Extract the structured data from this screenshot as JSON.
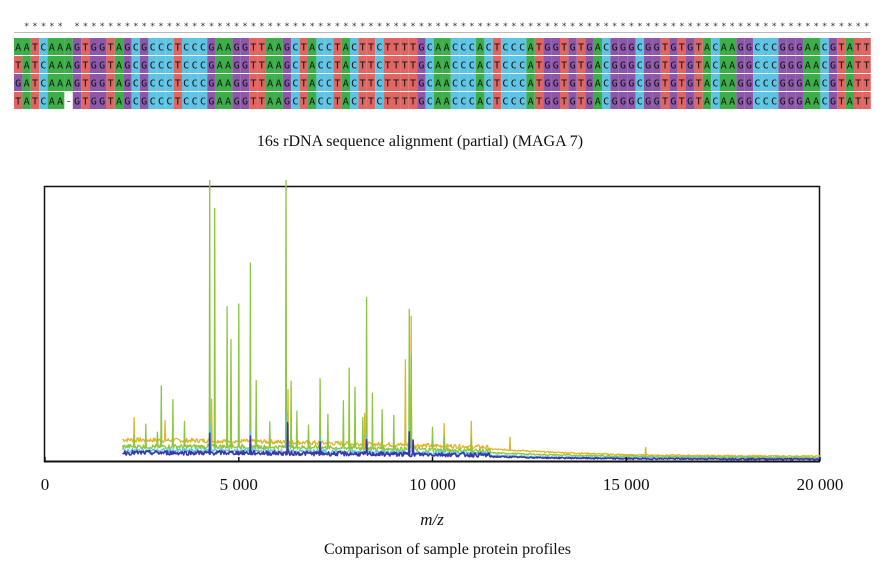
{
  "alignment": {
    "caption": "16s rDNA sequence alignment (partial) (MAGA 7)",
    "conservation_mark": "*",
    "sequences": [
      "AATCAAAGTGGTAGCGCCCTCCCGAAGGTTAAGCTACCTACTTCTTTTGCAACCCACTCCCATGGTGTGACGGGCGGTGTGTACAAGGCCCGGGAACGTATT",
      "TATCAAAGTGGTAGCGCCCTCCCGAAGGTTAAGCTACCTACTTCTTTTGCAACCCACTCCCATGGTGTGACGGGCGGTGTGTACAAGGCCCGGGAACGTATT",
      "GATCAAAGTGGTAGCGCCCTCCCGAAGGTTAAGCTACCTACTTCTTTTGCAACCCACTCCCATGGTGTGACGGGCGGTGTGTACAAGGCCCGGGAACGTATT",
      "TATCAA-GTGGTAGCGCCCTCCCGAAGGTTAAGCTACCTACTTCTTTTGCAACCCACTCCCATGGTGTGACGGGCGGTGTGTACAAGGCCCGGGAACGTATT"
    ],
    "base_colors": {
      "A": "#3dae4a",
      "T": "#e06663",
      "G": "#8d58a9",
      "C": "#5fc4e4",
      "-": "#ffffff"
    }
  },
  "figure": {
    "caption": "Comparison of sample protein profiles"
  },
  "chart_data": {
    "type": "line",
    "title": "",
    "xlabel": "m/z",
    "ylabel": "",
    "xlim": [
      0,
      20000
    ],
    "ylim": [
      0,
      100
    ],
    "x_ticks": [
      0,
      5000,
      10000,
      15000,
      20000
    ],
    "x_tick_labels": [
      "0",
      "5 000",
      "10 000",
      "15 000",
      "20 000"
    ],
    "grid": false,
    "legend": "none",
    "series": [
      {
        "color": "#e0b42a",
        "baseline": [
          [
            2000,
            7
          ],
          [
            5000,
            6.5
          ],
          [
            8000,
            5.5
          ],
          [
            11000,
            4.5
          ],
          [
            13000,
            3
          ],
          [
            15000,
            2
          ],
          [
            18000,
            1.6
          ],
          [
            20000,
            1.5
          ]
        ],
        "peaks": [
          [
            2300,
            9
          ],
          [
            3100,
            8
          ],
          [
            4300,
            16
          ],
          [
            5450,
            12
          ],
          [
            6270,
            20
          ],
          [
            7100,
            13
          ],
          [
            8250,
            12
          ],
          [
            9300,
            32
          ],
          [
            9450,
            48
          ],
          [
            10300,
            9
          ],
          [
            11000,
            10
          ],
          [
            12000,
            5
          ],
          [
            15500,
            3
          ]
        ]
      },
      {
        "color": "#8cc63f",
        "baseline": [
          [
            2000,
            4.5
          ],
          [
            5000,
            4.5
          ],
          [
            8000,
            4
          ],
          [
            11000,
            3
          ],
          [
            13000,
            2
          ],
          [
            15000,
            1.5
          ],
          [
            18000,
            1.2
          ],
          [
            20000,
            1
          ]
        ],
        "peaks": [
          [
            2300,
            5
          ],
          [
            2600,
            9
          ],
          [
            2900,
            6
          ],
          [
            3000,
            23
          ],
          [
            3300,
            18
          ],
          [
            3600,
            10
          ],
          [
            4250,
            100
          ],
          [
            4380,
            88
          ],
          [
            4700,
            52
          ],
          [
            4800,
            40
          ],
          [
            5000,
            53
          ],
          [
            5300,
            68
          ],
          [
            5450,
            25
          ],
          [
            5800,
            10
          ],
          [
            6220,
            100
          ],
          [
            6350,
            25
          ],
          [
            6500,
            14
          ],
          [
            6800,
            9
          ],
          [
            7100,
            26
          ],
          [
            7300,
            13
          ],
          [
            7700,
            18
          ],
          [
            7850,
            30
          ],
          [
            8000,
            23
          ],
          [
            8200,
            12
          ],
          [
            8300,
            56
          ],
          [
            8450,
            21
          ],
          [
            8700,
            15
          ],
          [
            9000,
            13
          ],
          [
            9400,
            52
          ],
          [
            9450,
            35
          ],
          [
            10000,
            9
          ],
          [
            10300,
            6
          ],
          [
            11000,
            6
          ]
        ]
      },
      {
        "color": "#5bc8e0",
        "baseline": [
          [
            2000,
            3
          ],
          [
            5000,
            3
          ],
          [
            8000,
            2.5
          ],
          [
            11000,
            2
          ],
          [
            13000,
            1.2
          ],
          [
            15000,
            1
          ],
          [
            18000,
            0.8
          ],
          [
            20000,
            0.7
          ]
        ],
        "peaks": [
          [
            4280,
            10
          ],
          [
            5300,
            8
          ],
          [
            6250,
            15
          ],
          [
            7100,
            6
          ],
          [
            8300,
            7
          ],
          [
            9400,
            11
          ]
        ]
      },
      {
        "color": "#3a36a8",
        "baseline": [
          [
            2000,
            2.2
          ],
          [
            5000,
            2.2
          ],
          [
            8000,
            1.8
          ],
          [
            11000,
            1.5
          ],
          [
            13000,
            0.9
          ],
          [
            15000,
            0.6
          ],
          [
            18000,
            0.5
          ],
          [
            20000,
            0.4
          ]
        ],
        "peaks": [
          [
            4250,
            8
          ],
          [
            5300,
            7
          ],
          [
            6260,
            12
          ],
          [
            7100,
            5
          ],
          [
            8300,
            6
          ],
          [
            9400,
            9
          ],
          [
            9500,
            6
          ]
        ]
      }
    ]
  }
}
